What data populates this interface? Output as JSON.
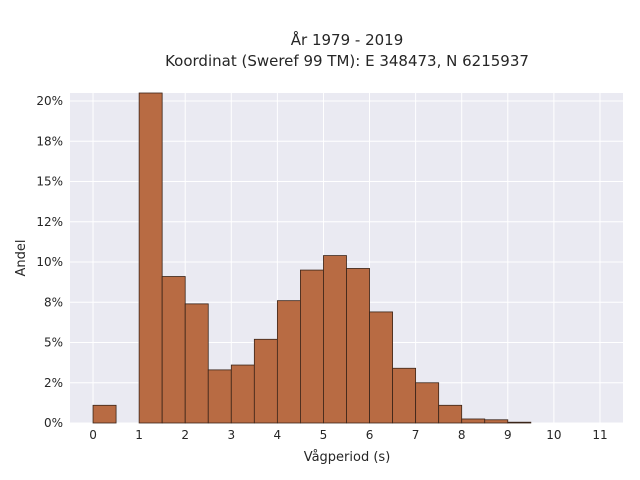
{
  "chart_data": {
    "type": "bar",
    "title_line1": "År 1979 - 2019",
    "title_line2": "Koordinat (Sweref 99 TM): E 348473, N 6215937",
    "xlabel": "Vågperiod (s)",
    "ylabel": "Andel",
    "bin_width": 0.5,
    "bins": [
      {
        "x0": 0.0,
        "value": 1.1
      },
      {
        "x0": 0.5,
        "value": 0.0
      },
      {
        "x0": 1.0,
        "value": 20.5
      },
      {
        "x0": 1.5,
        "value": 9.1
      },
      {
        "x0": 2.0,
        "value": 7.4
      },
      {
        "x0": 2.5,
        "value": 3.3
      },
      {
        "x0": 3.0,
        "value": 3.6
      },
      {
        "x0": 3.5,
        "value": 5.2
      },
      {
        "x0": 4.0,
        "value": 7.6
      },
      {
        "x0": 4.5,
        "value": 9.5
      },
      {
        "x0": 5.0,
        "value": 10.4
      },
      {
        "x0": 5.5,
        "value": 9.6
      },
      {
        "x0": 6.0,
        "value": 6.9
      },
      {
        "x0": 6.5,
        "value": 3.4
      },
      {
        "x0": 7.0,
        "value": 2.5
      },
      {
        "x0": 7.5,
        "value": 1.1
      },
      {
        "x0": 8.0,
        "value": 0.25
      },
      {
        "x0": 8.5,
        "value": 0.2
      },
      {
        "x0": 9.0,
        "value": 0.05
      }
    ],
    "xlim": [
      -0.5,
      11.5
    ],
    "ylim": [
      0,
      20.5
    ],
    "x_ticks": [
      {
        "value": 0,
        "label": "0"
      },
      {
        "value": 1,
        "label": "1"
      },
      {
        "value": 2,
        "label": "2"
      },
      {
        "value": 3,
        "label": "3"
      },
      {
        "value": 4,
        "label": "4"
      },
      {
        "value": 5,
        "label": "5"
      },
      {
        "value": 6,
        "label": "6"
      },
      {
        "value": 7,
        "label": "7"
      },
      {
        "value": 8,
        "label": "8"
      },
      {
        "value": 9,
        "label": "9"
      },
      {
        "value": 10,
        "label": "10"
      },
      {
        "value": 11,
        "label": "11"
      }
    ],
    "y_ticks": [
      {
        "value": 0,
        "label": "0%"
      },
      {
        "value": 2.5,
        "label": "2%"
      },
      {
        "value": 5,
        "label": "5%"
      },
      {
        "value": 7.5,
        "label": "8%"
      },
      {
        "value": 10,
        "label": "10%"
      },
      {
        "value": 12.5,
        "label": "12%"
      },
      {
        "value": 15,
        "label": "15%"
      },
      {
        "value": 17.5,
        "label": "18%"
      },
      {
        "value": 20,
        "label": "20%"
      }
    ],
    "grid": true,
    "colors": {
      "bar_fill": "#b86b43",
      "bar_edge": "#3a2418",
      "plot_background": "#eaeaf2",
      "grid": "#ffffff"
    }
  }
}
